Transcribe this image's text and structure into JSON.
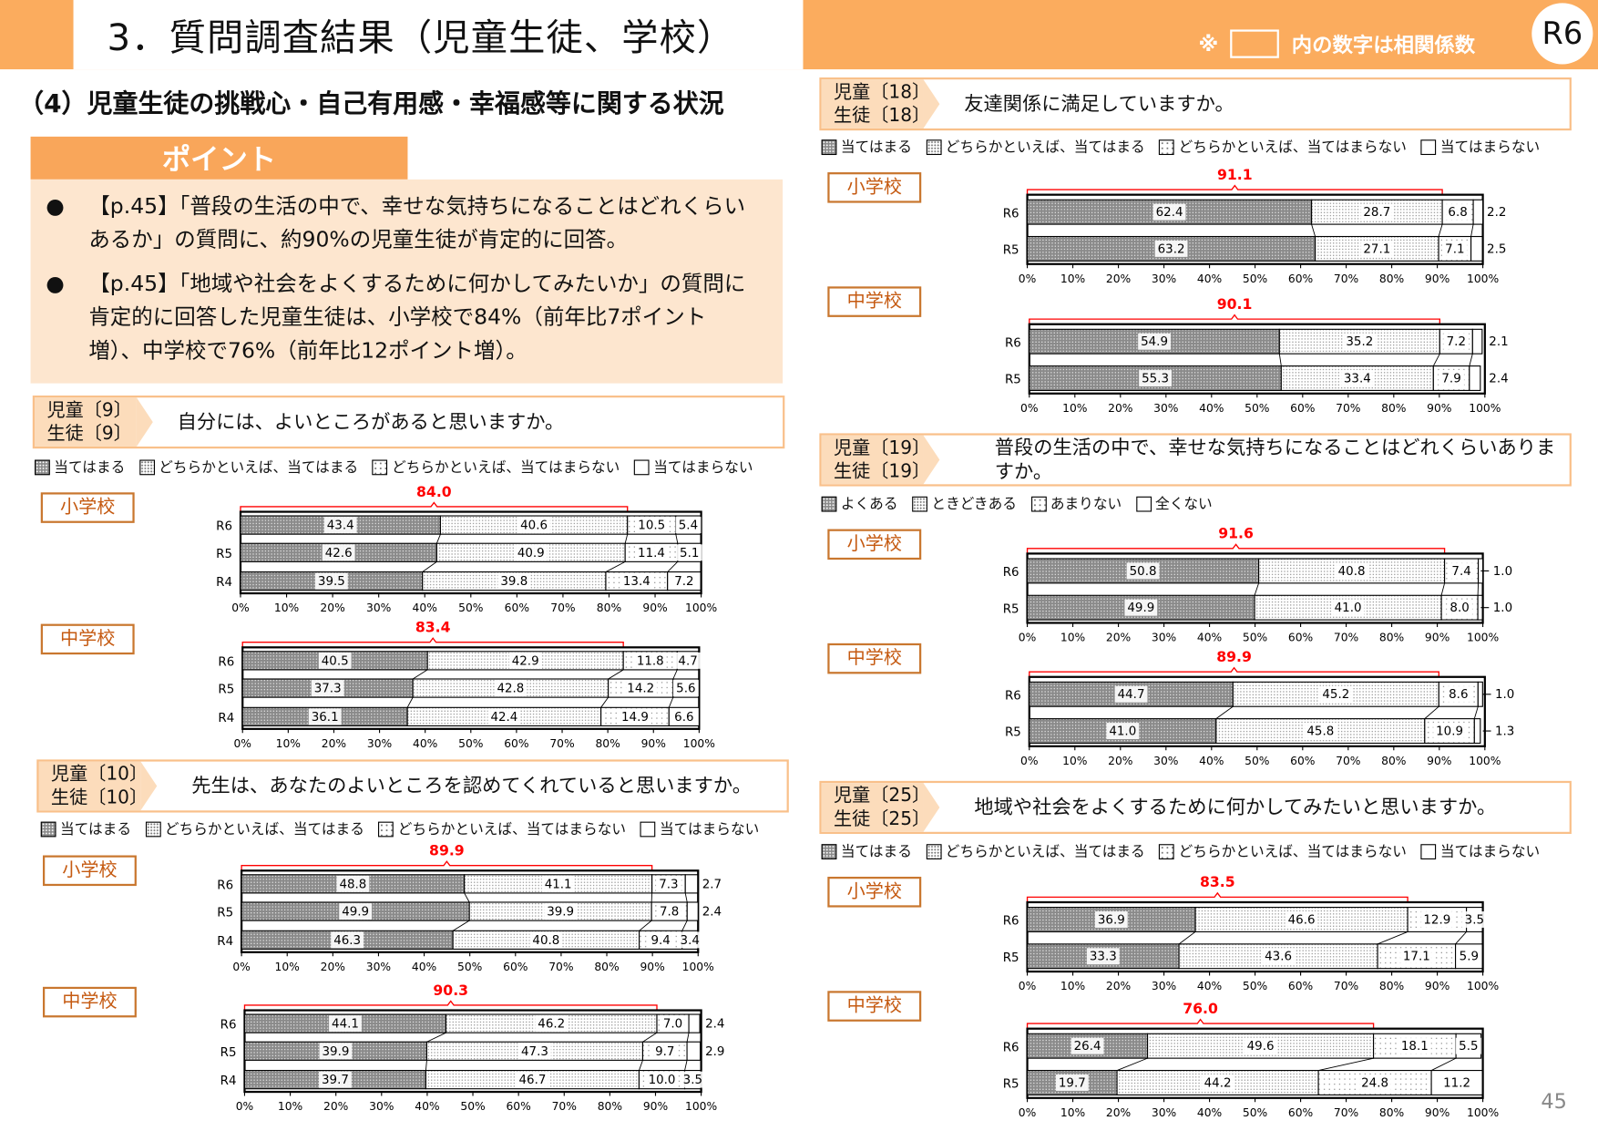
{
  "header": {
    "title": "3．質問調査結果（児童生徒、学校）",
    "note_prefix": "※",
    "note_suffix": "内の数字は相関係数",
    "badge": "R6"
  },
  "section_title": "（4）児童生徒の挑戦心・自己有用感・幸福感等に関する状況",
  "point": {
    "tab": "ポイント",
    "bullets": [
      "【p.45】「普段の生活の中で、幸せな気持ちになることはどれくらいあるか」の質問に、約90%の児童生徒が肯定的に回答。",
      "【p.45】「地域や社会をよくするために何かしてみたいか」の質問に肯定的に回答した児童生徒は、小学校で84%（前年比7ポイント増）、中学校で76%（前年比12ポイント増）。"
    ]
  },
  "colors": {
    "accent": "#fbac5e",
    "bracket": "#ff0000",
    "school_label": "#c55a11"
  },
  "axis_ticks": [
    "0%",
    "10%",
    "20%",
    "30%",
    "40%",
    "50%",
    "60%",
    "70%",
    "80%",
    "90%",
    "100%"
  ],
  "page_number": "45",
  "questions": [
    {
      "code_child": "児童〔9〕",
      "code_student": "生徒〔9〕",
      "text": "自分には、よいところがあると思いますか。",
      "legend": [
        "当てはまる",
        "どちらかといえば、当てはまる",
        "どちらかといえば、当てはまらない",
        "当てはまらない"
      ],
      "charts": [
        {
          "school": "小学校",
          "bracket_total": "84.0",
          "rows": [
            {
              "label": "R6",
              "values": [
                43.4,
                40.6,
                10.5,
                5.4
              ]
            },
            {
              "label": "R5",
              "values": [
                42.6,
                40.9,
                11.4,
                5.1
              ]
            },
            {
              "label": "R4",
              "values": [
                39.5,
                39.8,
                13.4,
                7.2
              ]
            }
          ]
        },
        {
          "school": "中学校",
          "bracket_total": "83.4",
          "rows": [
            {
              "label": "R6",
              "values": [
                40.5,
                42.9,
                11.8,
                4.7
              ]
            },
            {
              "label": "R5",
              "values": [
                37.3,
                42.8,
                14.2,
                5.6
              ]
            },
            {
              "label": "R4",
              "values": [
                36.1,
                42.4,
                14.9,
                6.6
              ]
            }
          ]
        }
      ]
    },
    {
      "code_child": "児童〔10〕",
      "code_student": "生徒〔10〕",
      "text": "先生は、あなたのよいところを認めてくれていると思いますか。",
      "legend": [
        "当てはまる",
        "どちらかといえば、当てはまる",
        "どちらかといえば、当てはまらない",
        "当てはまらない"
      ],
      "charts": [
        {
          "school": "小学校",
          "bracket_total": "89.9",
          "rows": [
            {
              "label": "R6",
              "values": [
                48.8,
                41.1,
                7.3,
                2.7
              ]
            },
            {
              "label": "R5",
              "values": [
                49.9,
                39.9,
                7.8,
                2.4
              ]
            },
            {
              "label": "R4",
              "values": [
                46.3,
                40.8,
                9.4,
                3.4
              ]
            }
          ]
        },
        {
          "school": "中学校",
          "bracket_total": "90.3",
          "rows": [
            {
              "label": "R6",
              "values": [
                44.1,
                46.2,
                7.0,
                2.4
              ]
            },
            {
              "label": "R5",
              "values": [
                39.9,
                47.3,
                9.7,
                2.9
              ]
            },
            {
              "label": "R4",
              "values": [
                39.7,
                46.7,
                10.0,
                3.5
              ]
            }
          ]
        }
      ]
    },
    {
      "code_child": "児童〔18〕",
      "code_student": "生徒〔18〕",
      "text": "友達関係に満足していますか。",
      "legend": [
        "当てはまる",
        "どちらかといえば、当てはまる",
        "どちらかといえば、当てはまらない",
        "当てはまらない"
      ],
      "charts": [
        {
          "school": "小学校",
          "bracket_total": "91.1",
          "rows": [
            {
              "label": "R6",
              "values": [
                62.4,
                28.7,
                6.8,
                2.2
              ]
            },
            {
              "label": "R5",
              "values": [
                63.2,
                27.1,
                7.1,
                2.5
              ]
            }
          ]
        },
        {
          "school": "中学校",
          "bracket_total": "90.1",
          "rows": [
            {
              "label": "R6",
              "values": [
                54.9,
                35.2,
                7.2,
                2.1
              ]
            },
            {
              "label": "R5",
              "values": [
                55.3,
                33.4,
                7.9,
                2.4
              ]
            }
          ]
        }
      ]
    },
    {
      "code_child": "児童〔19〕",
      "code_student": "生徒〔19〕",
      "text": "普段の生活の中で、幸せな気持ちになることはどれくらいありますか。",
      "legend": [
        "よくある",
        "ときどきある",
        "あまりない",
        "全くない"
      ],
      "charts": [
        {
          "school": "小学校",
          "bracket_total": "91.6",
          "rows": [
            {
              "label": "R6",
              "values": [
                50.8,
                40.8,
                7.4,
                1.0
              ]
            },
            {
              "label": "R5",
              "values": [
                49.9,
                41.0,
                8.0,
                1.0
              ]
            }
          ]
        },
        {
          "school": "中学校",
          "bracket_total": "89.9",
          "rows": [
            {
              "label": "R6",
              "values": [
                44.7,
                45.2,
                8.6,
                1.0
              ]
            },
            {
              "label": "R5",
              "values": [
                41.0,
                45.8,
                10.9,
                1.3
              ]
            }
          ]
        }
      ]
    },
    {
      "code_child": "児童〔25〕",
      "code_student": "生徒〔25〕",
      "text": "地域や社会をよくするために何かしてみたいと思いますか。",
      "legend": [
        "当てはまる",
        "どちらかといえば、当てはまる",
        "どちらかといえば、当てはまらない",
        "当てはまらない"
      ],
      "charts": [
        {
          "school": "小学校",
          "bracket_total": "83.5",
          "rows": [
            {
              "label": "R6",
              "values": [
                36.9,
                46.6,
                12.9,
                3.5
              ]
            },
            {
              "label": "R5",
              "values": [
                33.3,
                43.6,
                17.1,
                5.9
              ]
            }
          ]
        },
        {
          "school": "中学校",
          "bracket_total": "76.0",
          "rows": [
            {
              "label": "R6",
              "values": [
                26.4,
                49.6,
                18.1,
                5.5
              ]
            },
            {
              "label": "R5",
              "values": [
                19.7,
                44.2,
                24.8,
                11.2
              ]
            }
          ]
        }
      ]
    }
  ]
}
